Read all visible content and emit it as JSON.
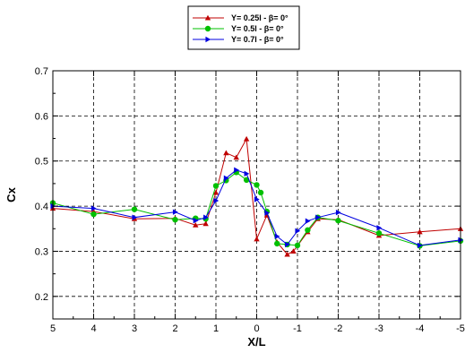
{
  "chart_data": {
    "type": "line",
    "xlabel": "X/L",
    "ylabel": "Cx",
    "xlim": [
      5,
      -5
    ],
    "ylim": [
      0.15,
      0.7
    ],
    "x_ticks": [
      5,
      4,
      3,
      2,
      1,
      0,
      -1,
      -2,
      -3,
      -4,
      -5
    ],
    "x_tick_labels": [
      "5",
      "4",
      "3",
      "2",
      "1",
      "0",
      "-1",
      "-2",
      "-3",
      "-4",
      "-5"
    ],
    "y_ticks": [
      0.2,
      0.3,
      0.4,
      0.5,
      0.6,
      0.7
    ],
    "y_tick_labels": [
      "0.2",
      "0.3",
      "0.4",
      "0.5",
      "0.6",
      "0.7"
    ],
    "grid": true,
    "legend_position": "top-center",
    "series": [
      {
        "name": "Y= 0.25l  -  β= 0°",
        "color": "#c00000",
        "marker": "triangle-up",
        "x": [
          5,
          4,
          3,
          2,
          1.5,
          1.25,
          1,
          0.75,
          0.5,
          0.25,
          0,
          -0.25,
          -0.5,
          -0.75,
          -0.9,
          -1.25,
          -1.5,
          -2,
          -3,
          -4,
          -5
        ],
        "y": [
          0.395,
          0.388,
          0.372,
          0.373,
          0.358,
          0.361,
          0.43,
          0.518,
          0.508,
          0.549,
          0.327,
          0.38,
          0.32,
          0.293,
          0.3,
          0.343,
          0.372,
          0.37,
          0.335,
          0.343,
          0.35
        ]
      },
      {
        "name": "Y= 0.5l  -  β= 0°",
        "color": "#00c000",
        "marker": "circle",
        "x": [
          5,
          4,
          3,
          2,
          1.5,
          1.25,
          1,
          0.75,
          0.5,
          0.25,
          0,
          -0.1,
          -0.25,
          -0.5,
          -0.75,
          -1,
          -1.25,
          -1.5,
          -2,
          -3,
          -4,
          -5
        ],
        "y": [
          0.407,
          0.382,
          0.393,
          0.37,
          0.373,
          0.372,
          0.445,
          0.457,
          0.475,
          0.458,
          0.447,
          0.43,
          0.388,
          0.317,
          0.315,
          0.313,
          0.347,
          0.375,
          0.368,
          0.34,
          0.312,
          0.323
        ]
      },
      {
        "name": "Y= 0.7l  -  β= 0°",
        "color": "#0000e0",
        "marker": "triangle-right",
        "x": [
          5,
          4,
          3,
          2,
          1.5,
          1.25,
          1,
          0.75,
          0.5,
          0.25,
          0,
          -0.25,
          -0.5,
          -0.75,
          -1,
          -1.25,
          -1.5,
          -2,
          -3,
          -4,
          -5
        ],
        "y": [
          0.4,
          0.395,
          0.375,
          0.387,
          0.368,
          0.375,
          0.412,
          0.462,
          0.48,
          0.472,
          0.415,
          0.385,
          0.333,
          0.315,
          0.345,
          0.367,
          0.375,
          0.386,
          0.352,
          0.313,
          0.325
        ]
      }
    ]
  }
}
